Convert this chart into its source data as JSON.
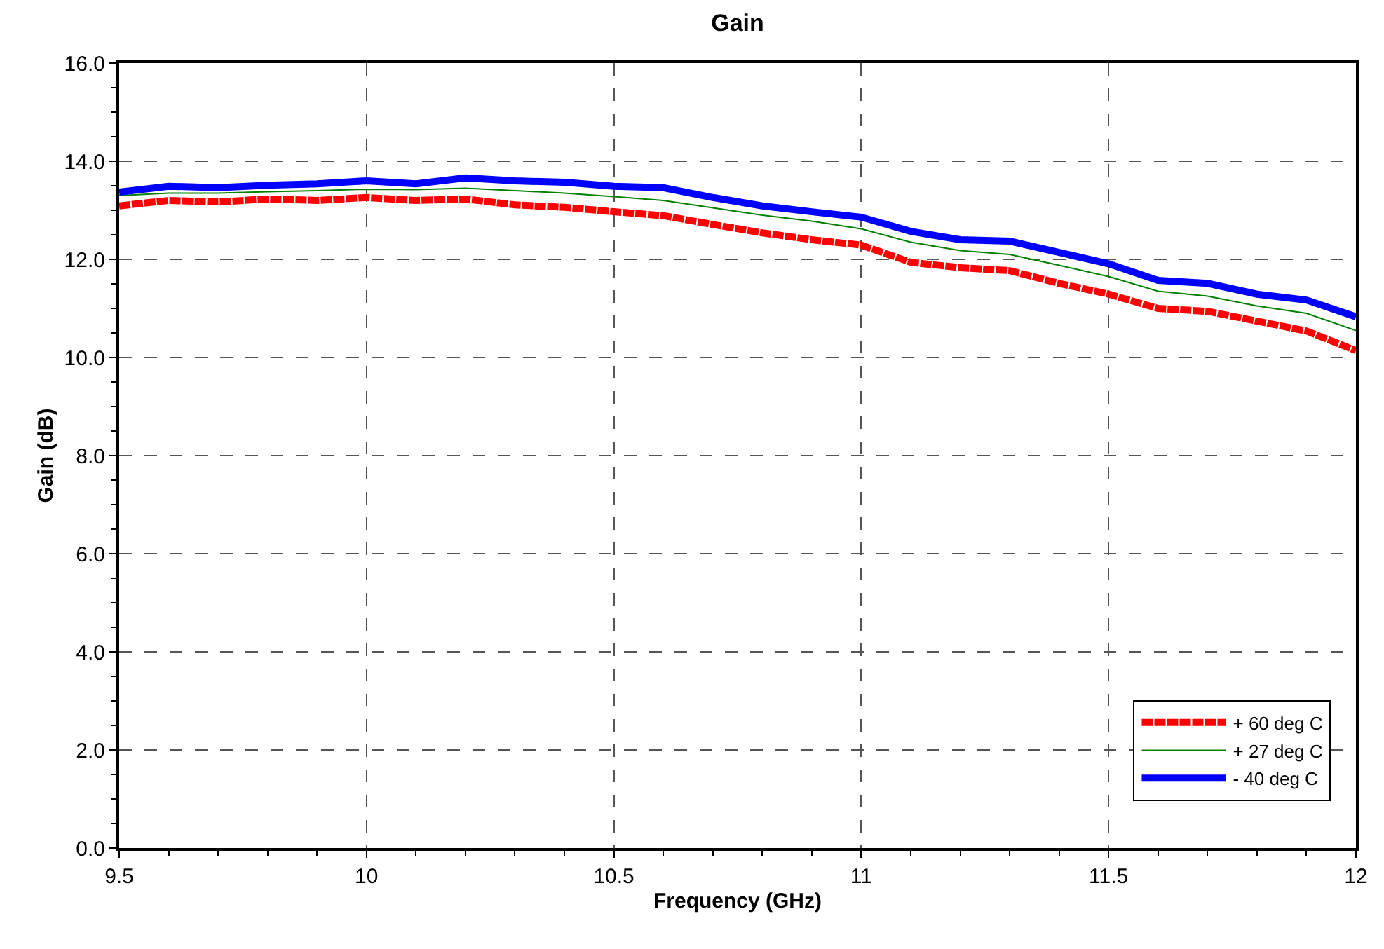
{
  "chart_data": {
    "type": "line",
    "title": "Gain",
    "xlabel": "Frequency (GHz)",
    "ylabel": "Gain (dB)",
    "x": [
      9.5,
      9.6,
      9.7,
      9.8,
      9.9,
      10.0,
      10.1,
      10.2,
      10.3,
      10.4,
      10.5,
      10.6,
      10.7,
      10.8,
      10.9,
      11.0,
      11.1,
      11.2,
      11.3,
      11.4,
      11.5,
      11.6,
      11.7,
      11.8,
      11.9,
      12.0
    ],
    "series": [
      {
        "name": "+ 60 deg C",
        "color": "#ff0000",
        "line_style": "dashed",
        "values": [
          13.09,
          13.2,
          13.17,
          13.23,
          13.2,
          13.26,
          13.2,
          13.23,
          13.11,
          13.06,
          12.97,
          12.89,
          12.71,
          12.54,
          12.4,
          12.29,
          11.94,
          11.83,
          11.77,
          11.51,
          11.29,
          11.0,
          10.94,
          10.74,
          10.54,
          10.14
        ]
      },
      {
        "name": "+ 27 deg C",
        "color": "#008000",
        "line_style": "solid",
        "values": [
          13.3,
          13.35,
          13.35,
          13.38,
          13.4,
          13.43,
          13.42,
          13.45,
          13.4,
          13.35,
          13.28,
          13.2,
          13.05,
          12.9,
          12.78,
          12.62,
          12.35,
          12.18,
          12.1,
          11.88,
          11.65,
          11.35,
          11.25,
          11.05,
          10.9,
          10.55
        ]
      },
      {
        "name": "- 40 deg C",
        "color": "#0000ff",
        "line_style": "solid",
        "values": [
          13.37,
          13.49,
          13.46,
          13.51,
          13.54,
          13.6,
          13.54,
          13.66,
          13.6,
          13.57,
          13.49,
          13.46,
          13.26,
          13.09,
          12.97,
          12.86,
          12.57,
          12.4,
          12.37,
          12.14,
          11.91,
          11.57,
          11.51,
          11.29,
          11.17,
          10.83
        ]
      }
    ],
    "xlim": [
      9.5,
      12
    ],
    "xticks": [
      9.5,
      10,
      10.5,
      11,
      11.5,
      12
    ],
    "ylim": [
      0,
      16
    ],
    "yticks": [
      {
        "value": 0,
        "label": "0.0"
      },
      {
        "value": 2,
        "label": "2.0"
      },
      {
        "value": 4,
        "label": "4.0"
      },
      {
        "value": 6,
        "label": "6.0"
      },
      {
        "value": 8,
        "label": "8.0"
      },
      {
        "value": 10,
        "label": "10.0"
      },
      {
        "value": 12,
        "label": "12.0"
      },
      {
        "value": 14,
        "label": "14.0"
      },
      {
        "value": 16,
        "label": "16.0"
      }
    ],
    "grid": true,
    "legend": "bottom right",
    "marker": "none"
  }
}
